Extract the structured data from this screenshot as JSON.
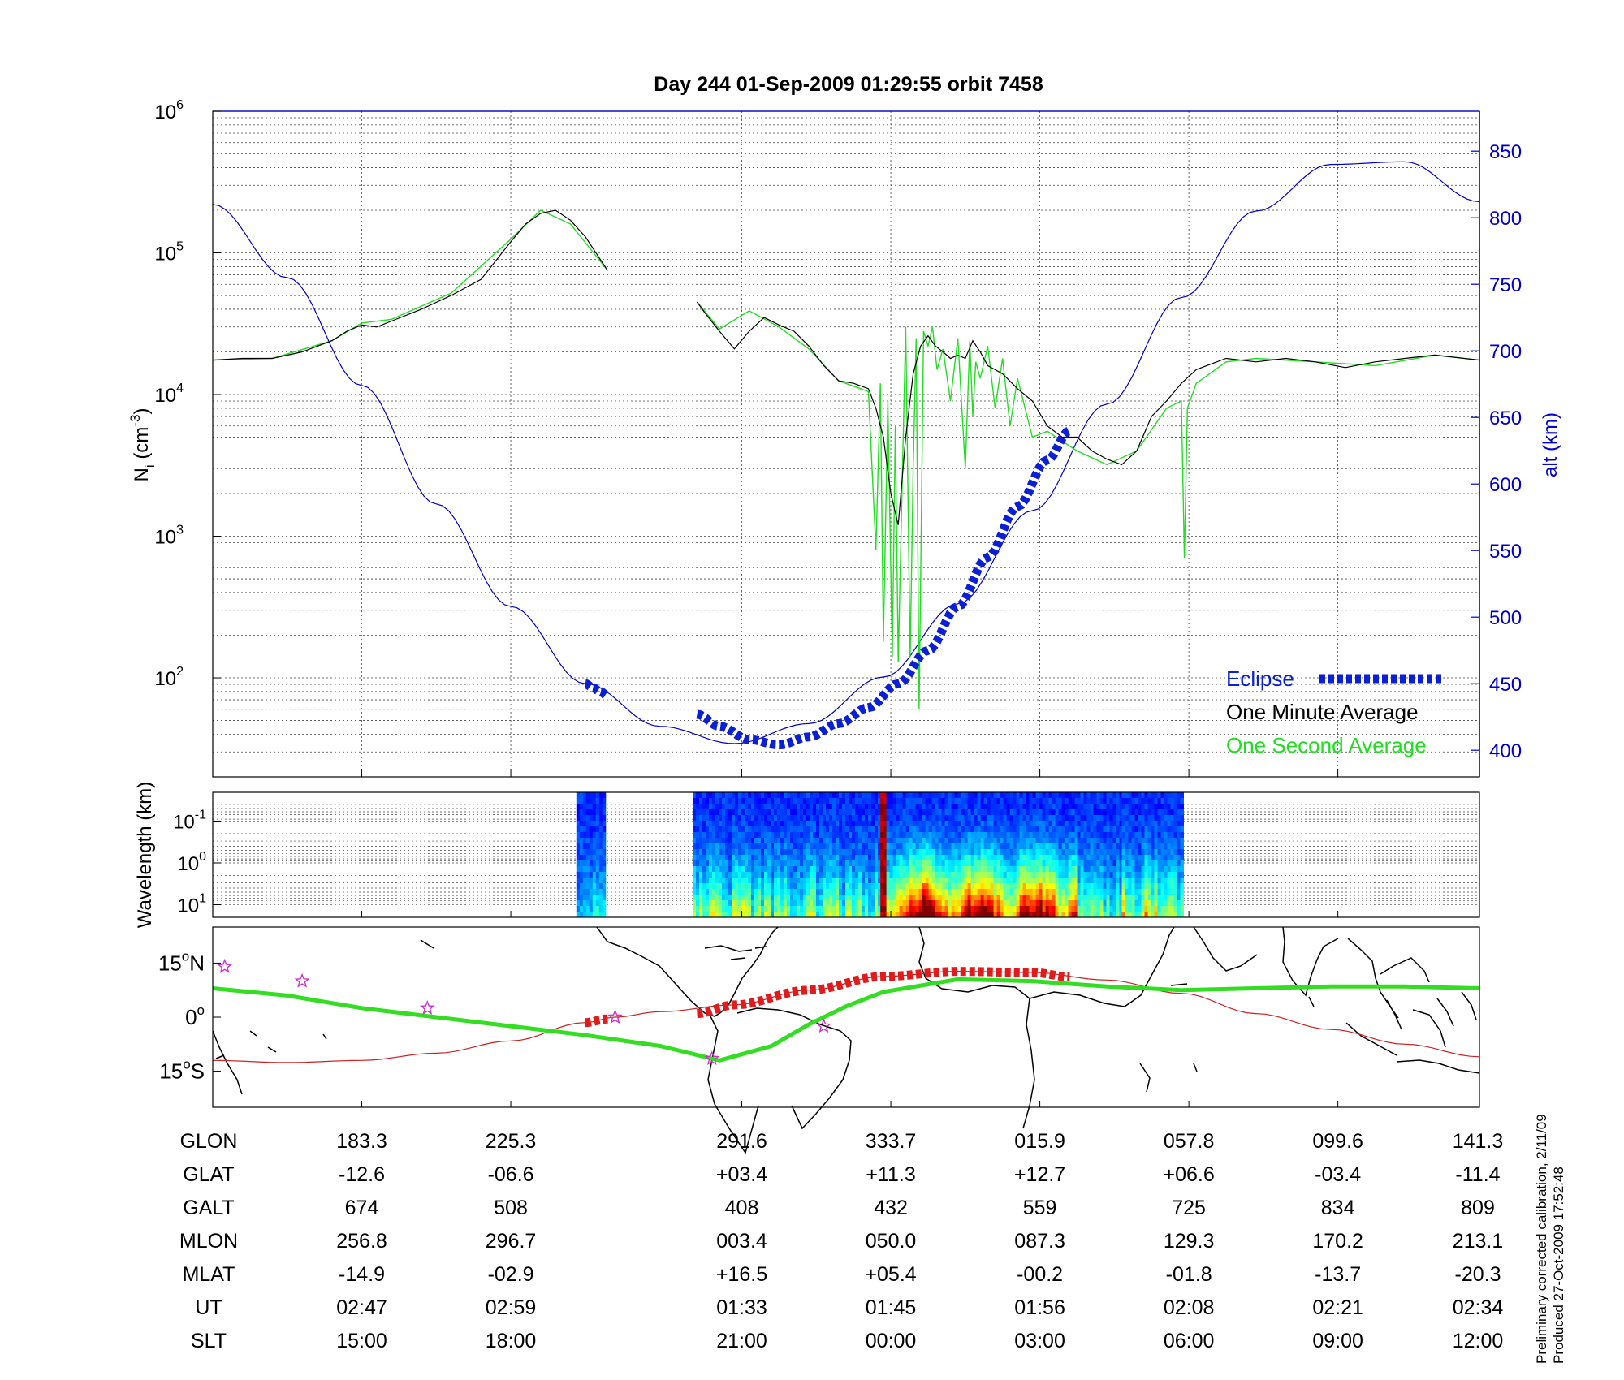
{
  "title": "Day 244  01-Sep-2009 01:29:55   orbit 7458",
  "colors": {
    "altitude": "#0000cc",
    "one_minute": "#000000",
    "one_second": "#22dd22",
    "eclipse": "#0a1fd6",
    "eclipse_map": "#e11b1b",
    "footprint": "#33dd22",
    "star": "#cc33cc"
  },
  "chart_data": [
    {
      "type": "line",
      "panel": "density",
      "title": "Day 244  01-Sep-2009 01:29:55   orbit 7458",
      "ylabel_left": "N",
      "ylabel_left_sub": "i",
      "ylabel_left_unit": " (cm",
      "ylabel_left_unit_sup": "-3",
      "ylabel_left_unit_end": ")",
      "ylabel_right": "alt (km)",
      "yscale_left": "log",
      "ylim_left": [
        20,
        1000000
      ],
      "yticks_left": [
        {
          "base": "10",
          "exp": "2",
          "value": 100
        },
        {
          "base": "10",
          "exp": "3",
          "value": 1000
        },
        {
          "base": "10",
          "exp": "4",
          "value": 10000
        },
        {
          "base": "10",
          "exp": "5",
          "value": 100000
        },
        {
          "base": "10",
          "exp": "6",
          "value": 1000000
        }
      ],
      "ylim_right": [
        380,
        880
      ],
      "yticks_right": [
        "400",
        "450",
        "500",
        "550",
        "600",
        "650",
        "700",
        "750",
        "800",
        "850"
      ],
      "x_range": [
        0,
        8.5
      ],
      "legend": [
        "Eclipse",
        "One Minute Average",
        "One Second Average"
      ],
      "legend_position": "bottom-right",
      "grid": true,
      "series": [
        {
          "name": "One Minute Average",
          "axis": "left",
          "x": [
            0,
            0.2,
            0.4,
            0.6,
            0.8,
            0.9,
            1.0,
            1.1,
            1.2,
            1.4,
            1.6,
            1.8,
            2.0,
            2.1,
            2.2,
            2.3,
            2.4,
            2.5,
            2.6,
            2.65,
            null,
            3.25,
            3.3,
            3.4,
            3.5,
            3.6,
            3.7,
            3.8,
            3.9,
            4.0,
            4.1,
            4.2,
            4.3,
            4.4,
            4.45,
            4.5,
            4.55,
            4.6,
            4.65,
            4.7,
            4.75,
            4.8,
            4.85,
            4.9,
            4.95,
            5.0,
            5.05,
            5.1,
            5.15,
            5.2,
            5.3,
            5.4,
            5.5,
            5.6,
            5.7,
            5.8,
            5.9,
            6.0,
            6.1,
            6.2,
            6.3,
            6.4,
            6.5,
            6.6,
            6.8,
            7.0,
            7.2,
            7.4,
            7.6,
            7.8,
            8.0,
            8.2,
            8.5
          ],
          "y": [
            17500,
            18000,
            18000,
            20000,
            24000,
            28000,
            31000,
            30000,
            33000,
            40000,
            50000,
            65000,
            120000,
            160000,
            190000,
            200000,
            170000,
            130000,
            90000,
            75000,
            null,
            45000,
            38000,
            28000,
            21000,
            28000,
            35000,
            31000,
            28000,
            22000,
            16000,
            12500,
            12000,
            11000,
            8000,
            5000,
            2000,
            1200,
            5000,
            14000,
            22000,
            26000,
            22000,
            20000,
            18000,
            19000,
            18000,
            24000,
            20000,
            16000,
            14000,
            11000,
            9000,
            6000,
            5000,
            5000,
            4000,
            3500,
            3200,
            4000,
            7000,
            9000,
            12000,
            15000,
            18000,
            17000,
            18000,
            17000,
            15500,
            17000,
            18000,
            19000,
            17500
          ]
        },
        {
          "name": "One Second Average",
          "axis": "left",
          "x": [
            0,
            0.4,
            0.8,
            1.0,
            1.2,
            1.6,
            2.0,
            2.2,
            2.4,
            2.65,
            null,
            3.25,
            3.4,
            3.6,
            3.8,
            4.0,
            4.2,
            4.4,
            4.45,
            4.48,
            4.5,
            4.53,
            4.56,
            4.58,
            4.6,
            4.62,
            4.65,
            4.68,
            4.7,
            4.72,
            4.74,
            4.77,
            4.8,
            4.83,
            4.86,
            4.9,
            4.95,
            5.0,
            5.05,
            5.08,
            5.1,
            5.12,
            5.15,
            5.2,
            5.25,
            5.3,
            5.35,
            5.4,
            5.5,
            5.6,
            5.8,
            6.0,
            6.2,
            6.4,
            6.5,
            6.52,
            6.54,
            6.6,
            6.8,
            7.0,
            7.4,
            7.8,
            8.2,
            8.5
          ],
          "y": [
            17500,
            18000,
            24000,
            32000,
            34000,
            52000,
            125000,
            200000,
            160000,
            75000,
            null,
            45000,
            29000,
            39000,
            30000,
            21000,
            12500,
            10500,
            800,
            12000,
            180,
            9000,
            140,
            6000,
            130,
            1200,
            30000,
            140,
            3000,
            25000,
            60,
            28000,
            22000,
            30000,
            15000,
            21000,
            9000,
            25000,
            3000,
            24000,
            7000,
            17000,
            13000,
            22000,
            8000,
            18000,
            6000,
            13000,
            5000,
            5500,
            4000,
            3200,
            4000,
            8000,
            9000,
            700,
            8000,
            12000,
            17000,
            18000,
            17000,
            16000,
            19000,
            17500
          ]
        },
        {
          "name": "alt (km)",
          "axis": "right",
          "x": [
            0,
            0.5,
            1.0,
            1.5,
            2.0,
            2.5,
            3.0,
            3.5,
            4.0,
            4.5,
            5.0,
            5.5,
            6.0,
            6.5,
            7.0,
            7.5,
            8.0,
            8.5
          ],
          "y": [
            810,
            755,
            674,
            585,
            508,
            450,
            418,
            405,
            420,
            455,
            510,
            580,
            660,
            740,
            805,
            840,
            842,
            812
          ]
        },
        {
          "name": "Eclipse",
          "axis": "right",
          "x": [
            2.5,
            2.55,
            2.6,
            2.65,
            null,
            3.25,
            3.4,
            3.6,
            3.8,
            4.0,
            4.2,
            4.4,
            4.6,
            4.8,
            5.0,
            5.2,
            5.4,
            5.6,
            5.75
          ],
          "y": [
            450,
            447,
            444,
            441,
            null,
            427,
            418,
            408,
            404,
            410,
            420,
            432,
            450,
            475,
            508,
            545,
            583,
            618,
            640
          ]
        }
      ]
    },
    {
      "type": "heatmap",
      "panel": "spectrogram",
      "ylabel": "Wavelength (km)",
      "yscale": "log",
      "yticks": [
        {
          "base": "10",
          "exp": "-1"
        },
        {
          "base": "10",
          "exp": "0"
        },
        {
          "base": "10",
          "exp": "1"
        }
      ],
      "x_range": [
        0,
        8.5
      ],
      "segments": [
        {
          "x": [
            2.44,
            2.62
          ],
          "activity": 0.2
        },
        {
          "x": [
            3.22,
            4.48
          ],
          "activity": 0.35
        },
        {
          "x": [
            4.48,
            4.52
          ],
          "activity": 1.0
        },
        {
          "x": [
            4.52,
            5.8
          ],
          "activity": 0.8
        },
        {
          "x": [
            5.8,
            6.1
          ],
          "activity": 0.3
        },
        {
          "x": [
            6.1,
            6.5
          ],
          "activity": 0.45
        }
      ]
    },
    {
      "type": "line",
      "panel": "map",
      "yticks": [
        {
          "value": 15,
          "label": "15",
          "unit": "N"
        },
        {
          "value": 0,
          "label": "0",
          "unit": ""
        },
        {
          "value": -15,
          "label": "15",
          "unit": "S"
        }
      ],
      "ylim": [
        -25,
        25
      ],
      "x_range": [
        0,
        8.5
      ],
      "series": [
        {
          "name": "orbit track",
          "x": [
            0,
            0.5,
            1.0,
            1.5,
            2.0,
            2.5,
            2.7,
            3.0,
            3.5,
            4.0,
            4.5,
            5.0,
            5.5,
            6.0,
            6.5,
            7.0,
            7.5,
            8.0,
            8.5
          ],
          "y": [
            -12,
            -12.6,
            -12,
            -10,
            -6.6,
            -1.5,
            0,
            1.5,
            3.4,
            7.5,
            11.3,
            12.7,
            12.4,
            10.3,
            6.6,
            1,
            -3.4,
            -7.5,
            -11
          ]
        },
        {
          "name": "magnetic footprint",
          "x": [
            0,
            0.5,
            1.0,
            1.5,
            2.0,
            2.5,
            3.0,
            3.4,
            3.75,
            4.0,
            4.25,
            4.5,
            5.0,
            5.5,
            6.0,
            6.5,
            7.0,
            7.5,
            8.0,
            8.5
          ],
          "y": [
            8,
            6,
            2.5,
            0,
            -2.5,
            -5,
            -8,
            -12,
            -8,
            -2,
            3,
            7,
            10.5,
            10,
            8.5,
            7.5,
            8,
            8.5,
            8.5,
            8
          ]
        },
        {
          "name": "eclipse segment",
          "x": [
            2.5,
            2.65,
            null,
            3.25,
            3.5,
            4.0,
            4.5,
            5.0,
            5.5,
            5.75
          ],
          "y": [
            -1.5,
            -0.5,
            null,
            1,
            3.4,
            7.5,
            11.3,
            12.7,
            12.4,
            11.2
          ]
        }
      ],
      "stars": [
        {
          "x": 0.08,
          "y": 14
        },
        {
          "x": 0.6,
          "y": 10
        },
        {
          "x": 1.44,
          "y": 2.5
        },
        {
          "x": 2.7,
          "y": 0
        },
        {
          "x": 3.35,
          "y": -11.5
        },
        {
          "x": 4.1,
          "y": -2.5
        }
      ]
    },
    {
      "type": "table",
      "panel": "ephemeris",
      "rows": [
        {
          "label": "GLON",
          "values": [
            "183.3",
            "225.3",
            "291.6",
            "333.7",
            "015.9",
            "057.8",
            "099.6",
            "141.3"
          ]
        },
        {
          "label": "GLAT",
          "values": [
            "-12.6",
            "-06.6",
            "+03.4",
            "+11.3",
            "+12.7",
            "+06.6",
            "-03.4",
            "-11.4"
          ]
        },
        {
          "label": "GALT",
          "values": [
            "674",
            "508",
            "408",
            "432",
            "559",
            "725",
            "834",
            "809"
          ]
        },
        {
          "label": "MLON",
          "values": [
            "256.8",
            "296.7",
            "003.4",
            "050.0",
            "087.3",
            "129.3",
            "170.2",
            "213.1"
          ]
        },
        {
          "label": "MLAT",
          "values": [
            "-14.9",
            "-02.9",
            "+16.5",
            "+05.4",
            "-00.2",
            "-01.8",
            "-13.7",
            "-20.3"
          ]
        },
        {
          "label": "UT",
          "values": [
            "02:47",
            "02:59",
            "01:33",
            "01:45",
            "01:56",
            "02:08",
            "02:21",
            "02:34"
          ]
        },
        {
          "label": "SLT",
          "values": [
            "15:00",
            "18:00",
            "21:00",
            "00:00",
            "03:00",
            "06:00",
            "09:00",
            "12:00"
          ]
        }
      ],
      "columns_x": [
        1,
        2,
        3.55,
        4.55,
        5.55,
        6.55,
        7.55,
        8.5
      ]
    }
  ],
  "footer": {
    "line1": "Preliminary corrected calibration, 2/11/09",
    "line2": "Produced 27-Oct-2009 17:52:48"
  }
}
